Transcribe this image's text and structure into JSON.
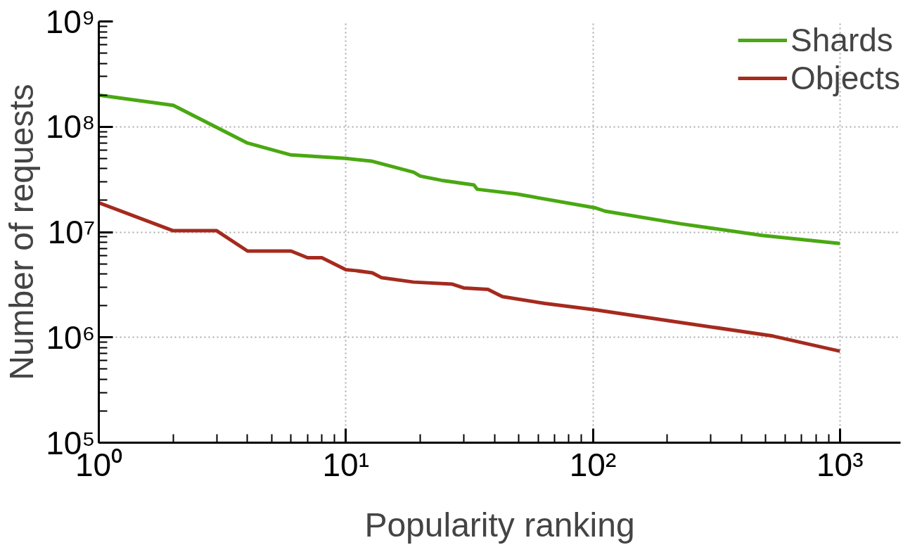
{
  "chart_data": {
    "type": "line",
    "xlabel": "Popularity ranking",
    "ylabel": "Number of requests",
    "log": "xy",
    "grid": true,
    "legend": "top right",
    "line_style": "solid",
    "marker": "none",
    "xlim": [
      1,
      1760
    ],
    "ylim": [
      100000,
      1000000000
    ],
    "xticks": [
      {
        "value": 1,
        "label": "10⁰"
      },
      {
        "value": 10,
        "label": "10¹"
      },
      {
        "value": 100,
        "label": "10²"
      },
      {
        "value": 1000,
        "label": "10³"
      }
    ],
    "yticks": [
      {
        "value": 100000,
        "label": "10⁵"
      },
      {
        "value": 1000000,
        "label": "10⁶"
      },
      {
        "value": 10000000,
        "label": "10⁷"
      },
      {
        "value": 100000000,
        "label": "10⁸"
      },
      {
        "value": 1000000000,
        "label": "10⁹"
      }
    ],
    "series": [
      {
        "name": "Shards",
        "color": "#4aa812",
        "x": [
          1,
          2,
          4,
          6,
          10,
          12.8,
          18.8,
          20,
          24.4,
          33,
          34,
          49,
          102,
          112,
          226,
          484,
          1000
        ],
        "values": [
          200000000,
          160000000,
          70000000,
          54000000,
          50000000,
          47000000,
          37000000,
          34000000,
          31000000,
          28000000,
          25500000,
          23000000,
          17000000,
          15800000,
          12000000,
          9300000,
          7800000
        ]
      },
      {
        "name": "Objects",
        "color": "#a52a1e",
        "x": [
          1,
          2,
          3,
          4,
          6,
          7,
          8,
          10,
          11,
          12.8,
          13.9,
          18.8,
          27,
          30,
          37.6,
          43,
          64,
          102,
          211,
          535,
          1000
        ],
        "values": [
          19000000,
          10300000,
          10300000,
          6600000,
          6600000,
          5700000,
          5700000,
          4400000,
          4300000,
          4100000,
          3700000,
          3350000,
          3200000,
          2950000,
          2860000,
          2440000,
          2100000,
          1830000,
          1420000,
          1030000,
          740000
        ]
      }
    ]
  }
}
